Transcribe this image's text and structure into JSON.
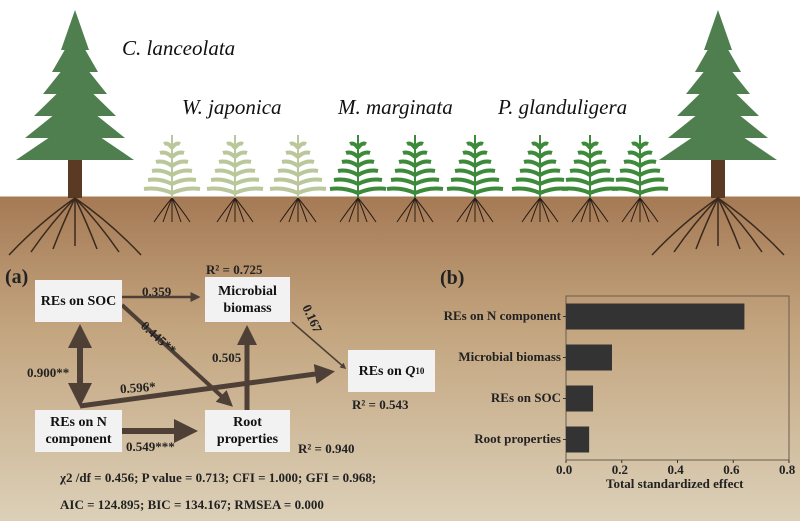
{
  "species": {
    "tree": "C. lanceolata",
    "fern1": "W. japonica",
    "fern2": "M. marginata",
    "fern3": "P. glanduligera"
  },
  "panel_a": {
    "label": "(a)",
    "nodes": {
      "soc": "REs on SOC",
      "microbial": "Microbial biomass",
      "q10_prefix": "REs on ",
      "q10_var": "Q",
      "q10_sub": "10",
      "n": "REs on N component",
      "root": "Root properties"
    },
    "r2": {
      "microbial": "R² = 0.725",
      "q10": "R² = 0.543",
      "root": "R² = 0.940"
    },
    "paths": {
      "soc_microbial": "0.359",
      "soc_root": "0.445**",
      "microbial_q10": "0.167",
      "root_microbial": "0.505",
      "soc_n": "0.900**",
      "n_q10": "0.596*",
      "n_root": "0.549***"
    },
    "fit1": "χ2 /df = 0.456; P value = 0.713; CFI = 1.000; GFI = 0.968;",
    "fit2": "AIC = 124.895; BIC = 134.167; RMSEA = 0.000"
  },
  "colors": {
    "arrow": "#4e3f37",
    "bar": "#333333",
    "tree": "#4f7f4f",
    "fern_light": "#b9c79a",
    "fern_dark": "#3d8a3a"
  },
  "chart_data": {
    "type": "bar",
    "orientation": "horizontal",
    "label": "(b)",
    "categories": [
      "REs on N component",
      "Microbial biomass",
      "REs on SOC",
      "Root properties"
    ],
    "values": [
      0.64,
      0.165,
      0.097,
      0.083
    ],
    "xlabel": "Total standardized effect",
    "xlim": [
      0,
      0.8
    ],
    "xticks": [
      "0.0",
      "0.2",
      "0.4",
      "0.6",
      "0.8"
    ]
  }
}
